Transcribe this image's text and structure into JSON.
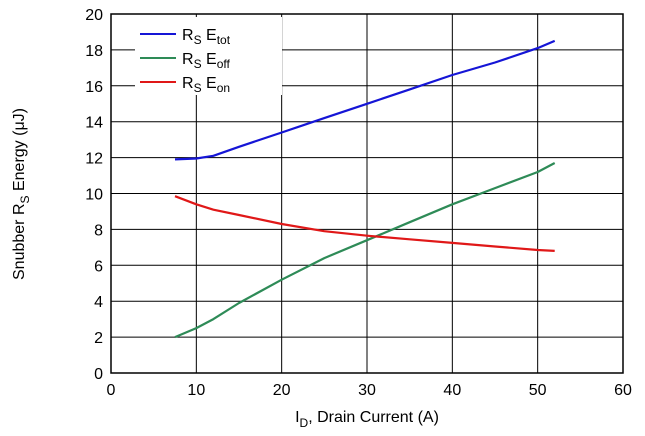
{
  "chart_data": {
    "type": "line",
    "xlabel": {
      "main": "I",
      "sub": "D",
      "rest": ", Drain Current (A)"
    },
    "ylabel": {
      "pre": "Snubber  R",
      "sub": "S",
      "rest": " Energy (μJ)"
    },
    "xlim": [
      0,
      60
    ],
    "ylim": [
      0,
      20
    ],
    "x_ticks": [
      "0",
      "10",
      "20",
      "30",
      "40",
      "50",
      "60"
    ],
    "y_ticks": [
      "0",
      "2",
      "4",
      "6",
      "8",
      "10",
      "12",
      "14",
      "16",
      "18",
      "20"
    ],
    "grid": true,
    "legend_position": "top-left",
    "series": [
      {
        "name": "R_S E_tot",
        "legend": {
          "r": "R",
          "r_sub": "S",
          "e": " E",
          "e_sub": "tot"
        },
        "color": "#1515d6",
        "points": [
          [
            7.5,
            11.9
          ],
          [
            10,
            11.95
          ],
          [
            12,
            12.1
          ],
          [
            15,
            12.6
          ],
          [
            20,
            13.4
          ],
          [
            25,
            14.2
          ],
          [
            30,
            15.0
          ],
          [
            35,
            15.8
          ],
          [
            40,
            16.6
          ],
          [
            45,
            17.3
          ],
          [
            50,
            18.1
          ],
          [
            52,
            18.5
          ]
        ]
      },
      {
        "name": "R_S E_off",
        "legend": {
          "r": "R",
          "r_sub": "S",
          "e": " E",
          "e_sub": "off"
        },
        "color": "#2e8b57",
        "points": [
          [
            7.5,
            2.0
          ],
          [
            10,
            2.5
          ],
          [
            12,
            3.0
          ],
          [
            15,
            3.9
          ],
          [
            20,
            5.2
          ],
          [
            25,
            6.4
          ],
          [
            30,
            7.4
          ],
          [
            35,
            8.4
          ],
          [
            40,
            9.4
          ],
          [
            45,
            10.3
          ],
          [
            50,
            11.2
          ],
          [
            52,
            11.7
          ]
        ]
      },
      {
        "name": "R_S E_on",
        "legend": {
          "r": "R",
          "r_sub": "S",
          "e": " E",
          "e_sub": "on"
        },
        "color": "#e01818",
        "points": [
          [
            7.5,
            9.85
          ],
          [
            10,
            9.4
          ],
          [
            12,
            9.1
          ],
          [
            15,
            8.8
          ],
          [
            20,
            8.3
          ],
          [
            25,
            7.9
          ],
          [
            30,
            7.65
          ],
          [
            35,
            7.45
          ],
          [
            40,
            7.25
          ],
          [
            45,
            7.05
          ],
          [
            50,
            6.85
          ],
          [
            52,
            6.8
          ]
        ]
      }
    ]
  }
}
